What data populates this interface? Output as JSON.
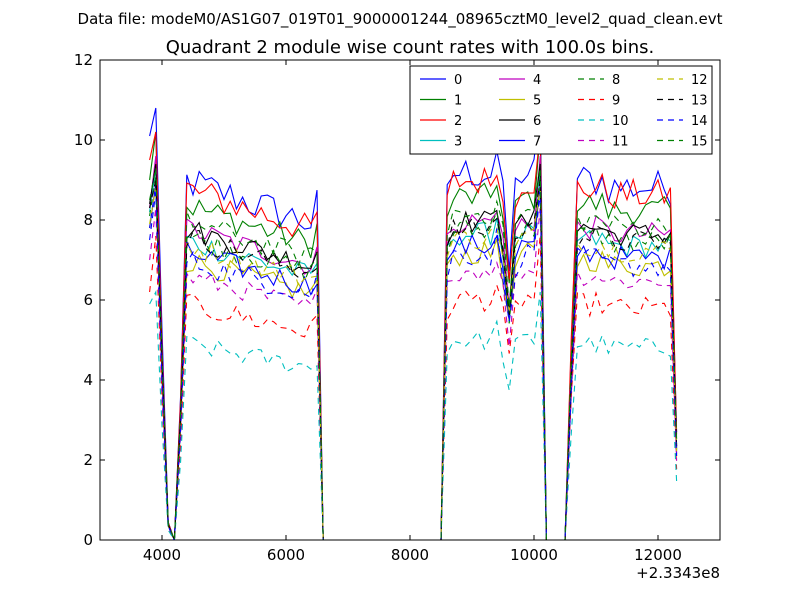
{
  "chart_data": {
    "type": "line",
    "suptitle": "Data file: modeM0/AS1G07_019T01_9000001244_08965cztM0_level2_quad_clean.evt",
    "title": "Quadrant 2 module wise count rates with 100.0s bins.",
    "xlabel": "",
    "ylabel": "",
    "x_offset_label": "+2.3343e8",
    "xlim": [
      3000,
      13000
    ],
    "ylim": [
      0,
      12
    ],
    "xticks": [
      4000,
      6000,
      8000,
      10000,
      12000
    ],
    "yticks": [
      0,
      2,
      4,
      6,
      8,
      10,
      12
    ],
    "grid": false,
    "legend_position": "top-right",
    "legend_columns": 4,
    "bin_seconds": 100,
    "segments": [
      {
        "start": 3800,
        "end": 4400
      },
      {
        "start": 4300,
        "end": 6700
      },
      {
        "start": 8500,
        "end": 10500
      },
      {
        "start": 10500,
        "end": 12300
      }
    ],
    "series": [
      {
        "name": "0",
        "color": "#0000ff",
        "dash": "solid",
        "level": 9.0,
        "jitter": 0.45,
        "start_value": 10.1,
        "peak": 10.8
      },
      {
        "name": "1",
        "color": "#008000",
        "dash": "solid",
        "level": 8.4,
        "jitter": 0.35,
        "start_value": 9.0,
        "peak": 10.2
      },
      {
        "name": "2",
        "color": "#ff0000",
        "dash": "solid",
        "level": 8.8,
        "jitter": 0.4,
        "start_value": 9.5,
        "peak": 10.2
      },
      {
        "name": "3",
        "color": "#00bfbf",
        "dash": "solid",
        "level": 7.5,
        "jitter": 0.3,
        "start_value": 8.2,
        "peak": 9.3
      },
      {
        "name": "4",
        "color": "#bf00bf",
        "dash": "solid",
        "level": 7.8,
        "jitter": 0.3,
        "start_value": 8.3,
        "peak": 9.6
      },
      {
        "name": "5",
        "color": "#bfbf00",
        "dash": "solid",
        "level": 7.0,
        "jitter": 0.3,
        "start_value": 7.8,
        "peak": 8.9
      },
      {
        "name": "6",
        "color": "#000000",
        "dash": "solid",
        "level": 7.8,
        "jitter": 0.3,
        "start_value": 8.4,
        "peak": 9.4
      },
      {
        "name": "7",
        "color": "#0000ff",
        "dash": "solid",
        "level": 7.2,
        "jitter": 0.3,
        "start_value": 7.8,
        "peak": 8.9
      },
      {
        "name": "8",
        "color": "#008000",
        "dash": "dashed",
        "level": 7.6,
        "jitter": 0.3,
        "start_value": 8.1,
        "peak": 9.1
      },
      {
        "name": "9",
        "color": "#ff0000",
        "dash": "dashed",
        "level": 5.9,
        "jitter": 0.3,
        "start_value": 6.2,
        "peak": 7.6
      },
      {
        "name": "10",
        "color": "#00bfbf",
        "dash": "dashed",
        "level": 4.9,
        "jitter": 0.25,
        "start_value": 5.9,
        "peak": 6.2
      },
      {
        "name": "11",
        "color": "#bf00bf",
        "dash": "dashed",
        "level": 6.6,
        "jitter": 0.25,
        "start_value": 7.0,
        "peak": 8.3
      },
      {
        "name": "12",
        "color": "#bfbf00",
        "dash": "dashed",
        "level": 7.4,
        "jitter": 0.3,
        "start_value": 7.9,
        "peak": 8.8
      },
      {
        "name": "13",
        "color": "#000000",
        "dash": "dashed",
        "level": 7.6,
        "jitter": 0.3,
        "start_value": 8.3,
        "peak": 9.0
      },
      {
        "name": "14",
        "color": "#0000ff",
        "dash": "dashed",
        "level": 7.0,
        "jitter": 0.3,
        "start_value": 7.5,
        "peak": 8.7
      },
      {
        "name": "15",
        "color": "#008000",
        "dash": "dashed",
        "level": 8.0,
        "jitter": 0.3,
        "start_value": 8.5,
        "peak": 9.3
      }
    ]
  }
}
